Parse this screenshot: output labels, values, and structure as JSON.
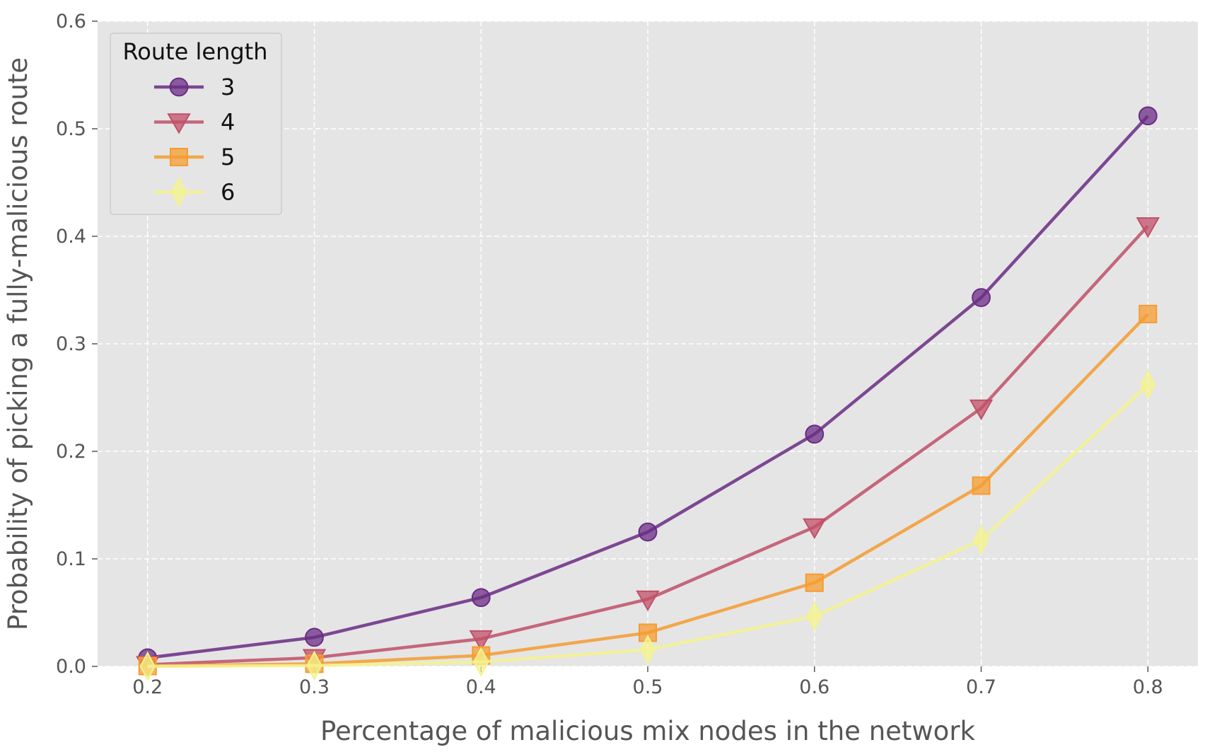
{
  "chart_data": {
    "type": "line",
    "xlabel": "Percentage of malicious mix nodes in the network",
    "ylabel": "Probability of picking a fully-malicious route",
    "x": [
      0.2,
      0.3,
      0.4,
      0.5,
      0.6,
      0.7,
      0.8
    ],
    "x_ticks": [
      "0.2",
      "0.3",
      "0.4",
      "0.5",
      "0.6",
      "0.7",
      "0.8"
    ],
    "y_ticks": [
      "0.0",
      "0.1",
      "0.2",
      "0.3",
      "0.4",
      "0.5",
      "0.6"
    ],
    "xlim": [
      0.17,
      0.83
    ],
    "ylim": [
      0.0,
      0.6
    ],
    "grid": true,
    "legend": {
      "title": "Route length",
      "placement": "top-left"
    },
    "series": [
      {
        "name": "3",
        "color": "#6a2c84",
        "marker": "circle",
        "values": [
          0.008,
          0.027,
          0.064,
          0.125,
          0.216,
          0.343,
          0.512
        ]
      },
      {
        "name": "4",
        "color": "#c05068",
        "marker": "triangle-down",
        "values": [
          0.0016,
          0.0081,
          0.0256,
          0.0625,
          0.1296,
          0.2401,
          0.4096
        ]
      },
      {
        "name": "5",
        "color": "#f59c30",
        "marker": "square",
        "values": [
          0.0003,
          0.0024,
          0.0102,
          0.0313,
          0.0778,
          0.1681,
          0.3277
        ]
      },
      {
        "name": "6",
        "color": "#f4f38e",
        "marker": "diamond",
        "values": [
          0.0001,
          0.0007,
          0.0041,
          0.0156,
          0.0467,
          0.1176,
          0.2621
        ]
      }
    ]
  }
}
